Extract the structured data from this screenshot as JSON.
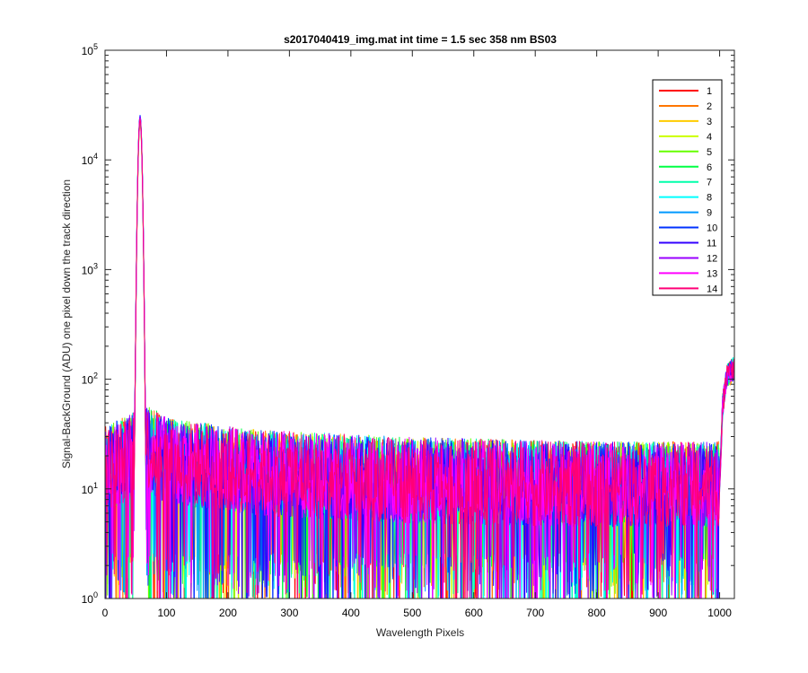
{
  "chart_data": {
    "type": "line",
    "title": "s2017040419_img.mat int time = 1.5 sec  358 nm BS03",
    "xlabel": "Wavelength Pixels",
    "ylabel": "Signal-BackGround (ADU) one pixel down the track direction",
    "xlim": [
      0,
      1024
    ],
    "ylim": [
      1,
      100000
    ],
    "yscale": "log",
    "grid": false,
    "legend_position": "top-right",
    "x_ticks": [
      "0",
      "100",
      "200",
      "300",
      "400",
      "500",
      "600",
      "700",
      "800",
      "900",
      "1000"
    ],
    "y_ticks": [
      {
        "base": "10",
        "exp": "0"
      },
      {
        "base": "10",
        "exp": "1"
      },
      {
        "base": "10",
        "exp": "2"
      },
      {
        "base": "10",
        "exp": "3"
      },
      {
        "base": "10",
        "exp": "4"
      },
      {
        "base": "10",
        "exp": "5"
      }
    ],
    "profile": {
      "baseline_left": [
        [
          0,
          15
        ],
        [
          45,
          20
        ],
        [
          65,
          25
        ]
      ],
      "peak": {
        "x": 57,
        "y": 24000
      },
      "baseline": [
        [
          65,
          25
        ],
        [
          100,
          18
        ],
        [
          250,
          14
        ],
        [
          500,
          12
        ],
        [
          800,
          11
        ],
        [
          1000,
          11
        ]
      ],
      "rise": [
        [
          1000,
          11
        ],
        [
          1005,
          60
        ],
        [
          1012,
          110
        ],
        [
          1024,
          130
        ]
      ],
      "noise_floor": 1,
      "noise_ceiling": 45
    },
    "series": [
      {
        "name": "1",
        "color": "#ff0000",
        "peak": 22000
      },
      {
        "name": "2",
        "color": "#ff7700",
        "peak": 23000
      },
      {
        "name": "3",
        "color": "#ffcc00",
        "peak": 22500
      },
      {
        "name": "4",
        "color": "#ccff00",
        "peak": 23000
      },
      {
        "name": "5",
        "color": "#66ff00",
        "peak": 23500
      },
      {
        "name": "6",
        "color": "#00ff44",
        "peak": 23000
      },
      {
        "name": "7",
        "color": "#00ffaa",
        "peak": 24000
      },
      {
        "name": "8",
        "color": "#00ffff",
        "peak": 24000
      },
      {
        "name": "9",
        "color": "#0099ff",
        "peak": 24500
      },
      {
        "name": "10",
        "color": "#0033ff",
        "peak": 25500
      },
      {
        "name": "11",
        "color": "#3300ff",
        "peak": 25000
      },
      {
        "name": "12",
        "color": "#9900ff",
        "peak": 24500
      },
      {
        "name": "13",
        "color": "#ff00ff",
        "peak": 24000
      },
      {
        "name": "14",
        "color": "#ff0077",
        "peak": 23500
      }
    ]
  }
}
